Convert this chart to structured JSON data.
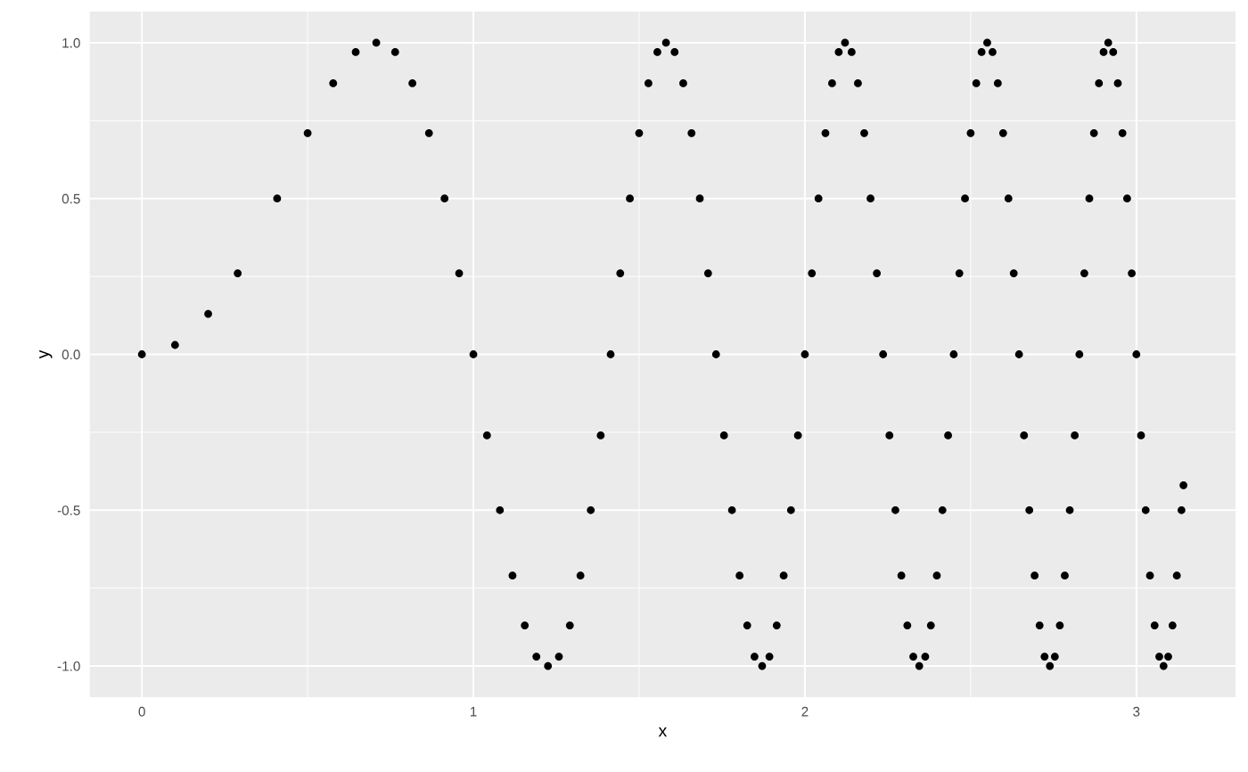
{
  "chart_data": {
    "type": "scatter",
    "xlabel": "x",
    "ylabel": "y",
    "x": [
      0,
      0.1,
      0.2,
      0.289,
      0.408,
      0.5,
      0.577,
      0.645,
      0.707,
      0.764,
      0.816,
      0.866,
      0.913,
      0.957,
      1,
      1.041,
      1.08,
      1.118,
      1.155,
      1.19,
      1.225,
      1.258,
      1.291,
      1.323,
      1.354,
      1.384,
      1.414,
      1.443,
      1.472,
      1.5,
      1.528,
      1.555,
      1.581,
      1.607,
      1.633,
      1.658,
      1.683,
      1.708,
      1.732,
      1.756,
      1.78,
      1.803,
      1.826,
      1.848,
      1.871,
      1.893,
      1.915,
      1.936,
      1.958,
      1.979,
      2,
      2.021,
      2.041,
      2.062,
      2.082,
      2.102,
      2.121,
      2.141,
      2.16,
      2.179,
      2.198,
      2.217,
      2.236,
      2.255,
      2.273,
      2.291,
      2.309,
      2.327,
      2.345,
      2.363,
      2.38,
      2.398,
      2.415,
      2.432,
      2.449,
      2.466,
      2.483,
      2.5,
      2.517,
      2.533,
      2.55,
      2.566,
      2.582,
      2.598,
      2.614,
      2.63,
      2.646,
      2.661,
      2.677,
      2.693,
      2.708,
      2.723,
      2.739,
      2.754,
      2.769,
      2.784,
      2.799,
      2.814,
      2.828,
      2.843,
      2.858,
      2.872,
      2.887,
      2.901,
      2.915,
      2.93,
      2.944,
      2.958,
      2.972,
      2.986,
      3,
      3.014,
      3.028,
      3.041,
      3.055,
      3.069,
      3.082,
      3.096,
      3.109,
      3.122,
      3.136,
      3.142
    ],
    "values": [
      0,
      0.03,
      0.13,
      0.26,
      0.5,
      0.71,
      0.87,
      0.97,
      1,
      0.97,
      0.87,
      0.71,
      0.5,
      0.26,
      0,
      -0.26,
      -0.5,
      -0.71,
      -0.87,
      -0.97,
      -1,
      -0.97,
      -0.87,
      -0.71,
      -0.5,
      -0.26,
      0,
      0.26,
      0.5,
      0.71,
      0.87,
      0.97,
      1,
      0.97,
      0.87,
      0.71,
      0.5,
      0.26,
      0,
      -0.26,
      -0.5,
      -0.71,
      -0.87,
      -0.97,
      -1,
      -0.97,
      -0.87,
      -0.71,
      -0.5,
      -0.26,
      0,
      0.26,
      0.5,
      0.71,
      0.87,
      0.97,
      1,
      0.97,
      0.87,
      0.71,
      0.5,
      0.26,
      0,
      -0.26,
      -0.5,
      -0.71,
      -0.87,
      -0.97,
      -1,
      -0.97,
      -0.87,
      -0.71,
      -0.5,
      -0.26,
      0,
      0.26,
      0.5,
      0.71,
      0.87,
      0.97,
      1,
      0.97,
      0.87,
      0.71,
      0.5,
      0.26,
      0,
      -0.26,
      -0.5,
      -0.71,
      -0.87,
      -0.97,
      -1,
      -0.97,
      -0.87,
      -0.71,
      -0.5,
      -0.26,
      0,
      0.26,
      0.5,
      0.71,
      0.87,
      0.97,
      1,
      0.97,
      0.87,
      0.71,
      0.5,
      0.26,
      0,
      -0.26,
      -0.5,
      -0.71,
      -0.87,
      -0.97,
      -1,
      -0.97,
      -0.87,
      -0.71,
      -0.5,
      -0.42
    ],
    "color": "#000000",
    "marker": "circle",
    "xlim": [
      -0.157,
      3.299
    ],
    "ylim": [
      -1.1,
      1.1
    ],
    "xticks": [
      0,
      1,
      2,
      3
    ],
    "yticks": [
      {
        "value": -1,
        "label": "-1.0"
      },
      {
        "value": -0.5,
        "label": "-0.5"
      },
      {
        "value": 0,
        "label": "0.0"
      },
      {
        "value": 0.5,
        "label": "0.5"
      },
      {
        "value": 1,
        "label": "1.0"
      }
    ],
    "grid": true
  }
}
